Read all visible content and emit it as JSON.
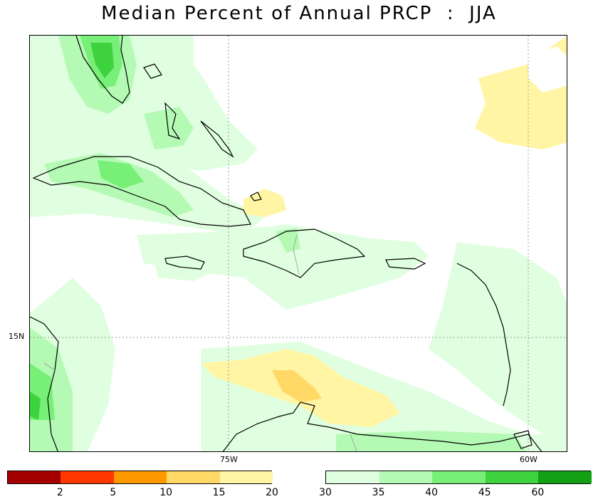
{
  "title": "Median Percent of Annual PRCP  :  JJA",
  "axes": {
    "lon_labels": [
      {
        "text": "75W",
        "lon": -75
      },
      {
        "text": "60W",
        "lon": -60
      }
    ],
    "lat_labels": [
      {
        "text": "15N",
        "lat": 15
      }
    ],
    "lon_range": [
      -85,
      -58
    ],
    "lat_range": [
      10,
      27.5
    ],
    "grid": true
  },
  "legend": {
    "dry_bins": [
      {
        "color": "#a50000",
        "label": "2"
      },
      {
        "color": "#ff3700",
        "label": "5"
      },
      {
        "color": "#ff9900",
        "label": "10"
      },
      {
        "color": "#ffd866",
        "label": "15"
      },
      {
        "color": "#fff5a5",
        "label": "20"
      }
    ],
    "wet_bins": [
      {
        "color": "#e0ffe0",
        "label": "30"
      },
      {
        "color": "#b4fab4",
        "label": "35"
      },
      {
        "color": "#78f078",
        "label": "40"
      },
      {
        "color": "#3ed23e",
        "label": "45"
      },
      {
        "color": "#14a014",
        "label": "60"
      }
    ]
  },
  "colors": {
    "pct_20": "#fff5a5",
    "pct_15": "#ffd866",
    "pct_30": "#e0ffe0",
    "pct_35": "#b4fab4",
    "pct_40": "#78f078",
    "pct_45": "#3ed23e",
    "coastline": "#000000",
    "borders": "#999999",
    "grid": "#999999"
  }
}
